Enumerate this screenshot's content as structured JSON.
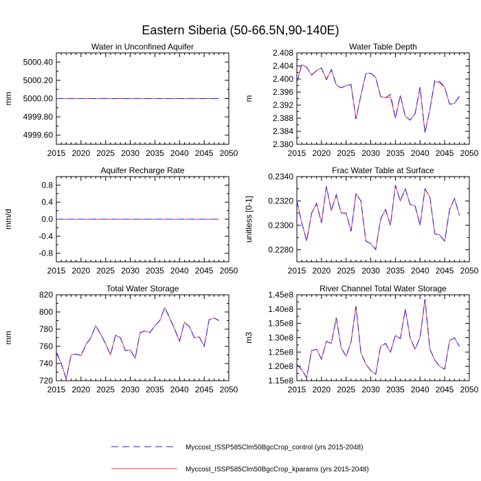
{
  "figure": {
    "title": "Eastern Siberia (50-66.5N,90-140E)"
  },
  "series_styles": [
    {
      "name": "Myccost_ISSP585Clm50BgcCrop_control (yrs 2015-2048)",
      "color": "#1a1aff",
      "dash": "dashed"
    },
    {
      "name": "Myccost_ISSP585Clm50BgcCrop_kparams (yrs 2015-2048)",
      "color": "#ff3333",
      "dash": "solid"
    }
  ],
  "chart_data": [
    {
      "type": "line",
      "title": "Water in Unconfined Aquifer",
      "xlabel": "",
      "ylabel": "mm",
      "xlim": [
        2015,
        2050
      ],
      "ylim": [
        4999.5,
        5000.5
      ],
      "xticks": [
        "2015",
        "2020",
        "2025",
        "2030",
        "2035",
        "2040",
        "2045",
        "2050"
      ],
      "yticks": [
        {
          "v": 5000.4,
          "label": "5000.40"
        },
        {
          "v": 5000.2,
          "label": "5000.20"
        },
        {
          "v": 5000.0,
          "label": "5000.00"
        },
        {
          "v": 4999.8,
          "label": "4999.80"
        },
        {
          "v": 4999.6,
          "label": "4999.60"
        }
      ],
      "x": [
        2015,
        2016,
        2017,
        2018,
        2019,
        2020,
        2021,
        2022,
        2023,
        2024,
        2025,
        2026,
        2027,
        2028,
        2029,
        2030,
        2031,
        2032,
        2033,
        2034,
        2035,
        2036,
        2037,
        2038,
        2039,
        2040,
        2041,
        2042,
        2043,
        2044,
        2045,
        2046,
        2047,
        2048
      ],
      "series": [
        {
          "values": [
            5000,
            5000,
            5000,
            5000,
            5000,
            5000,
            5000,
            5000,
            5000,
            5000,
            5000,
            5000,
            5000,
            5000,
            5000,
            5000,
            5000,
            5000,
            5000,
            5000,
            5000,
            5000,
            5000,
            5000,
            5000,
            5000,
            5000,
            5000,
            5000,
            5000,
            5000,
            5000,
            5000,
            5000
          ]
        },
        {
          "values": [
            5000,
            5000,
            5000,
            5000,
            5000,
            5000,
            5000,
            5000,
            5000,
            5000,
            5000,
            5000,
            5000,
            5000,
            5000,
            5000,
            5000,
            5000,
            5000,
            5000,
            5000,
            5000,
            5000,
            5000,
            5000,
            5000,
            5000,
            5000,
            5000,
            5000,
            5000,
            5000,
            5000,
            5000
          ]
        }
      ]
    },
    {
      "type": "line",
      "title": "Water Table Depth",
      "xlabel": "",
      "ylabel": "m",
      "xlim": [
        2015,
        2050
      ],
      "ylim": [
        2.38,
        2.408
      ],
      "xticks": [
        "2015",
        "2020",
        "2025",
        "2030",
        "2035",
        "2040",
        "2045",
        "2050"
      ],
      "yticks": [
        {
          "v": 2.408,
          "label": "2.408"
        },
        {
          "v": 2.404,
          "label": "2.404"
        },
        {
          "v": 2.4,
          "label": "2.400"
        },
        {
          "v": 2.396,
          "label": "2.396"
        },
        {
          "v": 2.392,
          "label": "2.392"
        },
        {
          "v": 2.388,
          "label": "2.388"
        },
        {
          "v": 2.384,
          "label": "2.384"
        },
        {
          "v": 2.38,
          "label": "2.380"
        }
      ],
      "x": [
        2015,
        2016,
        2017,
        2018,
        2019,
        2020,
        2021,
        2022,
        2023,
        2024,
        2025,
        2026,
        2027,
        2028,
        2029,
        2030,
        2031,
        2032,
        2033,
        2034,
        2035,
        2036,
        2037,
        2038,
        2039,
        2040,
        2041,
        2042,
        2043,
        2044,
        2045,
        2046,
        2047,
        2048
      ],
      "series": [
        {
          "values": [
            2.399,
            2.4044,
            2.4036,
            2.4012,
            2.4026,
            2.4034,
            2.3998,
            2.4029,
            2.3982,
            2.3973,
            2.398,
            2.3983,
            2.3877,
            2.395,
            2.4017,
            2.4018,
            2.4005,
            2.3946,
            2.3943,
            2.3953,
            2.388,
            2.395,
            2.3886,
            2.3874,
            2.3894,
            2.3975,
            2.3835,
            2.3907,
            2.3997,
            2.3992,
            2.3975,
            2.3923,
            2.3925,
            2.3948
          ]
        },
        {
          "values": [
            2.399,
            2.4044,
            2.4036,
            2.4012,
            2.4026,
            2.4034,
            2.3998,
            2.4029,
            2.3982,
            2.3973,
            2.398,
            2.3983,
            2.3877,
            2.395,
            2.4017,
            2.4018,
            2.4005,
            2.3946,
            2.3943,
            2.3945,
            2.388,
            2.395,
            2.3886,
            2.3874,
            2.3894,
            2.3975,
            2.3835,
            2.3907,
            2.3993,
            2.3988,
            2.3975,
            2.3923,
            2.3925,
            2.3948
          ]
        }
      ]
    },
    {
      "type": "line",
      "title": "Aquifer Recharge Rate",
      "xlabel": "",
      "ylabel": "mm/d",
      "xlim": [
        2015,
        2050
      ],
      "ylim": [
        -1.0,
        1.0
      ],
      "xticks": [
        "2015",
        "2020",
        "2025",
        "2030",
        "2035",
        "2040",
        "2045",
        "2050"
      ],
      "yticks": [
        {
          "v": 0.8,
          "label": "0.8"
        },
        {
          "v": 0.4,
          "label": "0.4"
        },
        {
          "v": 0.0,
          "label": "0.0"
        },
        {
          "v": -0.4,
          "label": "-0.4"
        },
        {
          "v": -0.8,
          "label": "-0.8"
        }
      ],
      "x": [
        2015,
        2016,
        2017,
        2018,
        2019,
        2020,
        2021,
        2022,
        2023,
        2024,
        2025,
        2026,
        2027,
        2028,
        2029,
        2030,
        2031,
        2032,
        2033,
        2034,
        2035,
        2036,
        2037,
        2038,
        2039,
        2040,
        2041,
        2042,
        2043,
        2044,
        2045,
        2046,
        2047,
        2048
      ],
      "series": [
        {
          "values": [
            0,
            0,
            0,
            0,
            0,
            0,
            0,
            0,
            0,
            0,
            0,
            0,
            0,
            0,
            0,
            0,
            0,
            0,
            0,
            0,
            0,
            0,
            0,
            0,
            0,
            0,
            0,
            0,
            0,
            0,
            0,
            0,
            0,
            0
          ]
        },
        {
          "values": [
            0,
            0,
            0,
            0,
            0,
            0,
            0,
            0,
            0,
            0,
            0,
            0,
            0,
            0,
            0,
            0,
            0,
            0,
            0,
            0,
            0,
            0,
            0,
            0,
            0,
            0,
            0,
            0,
            0,
            0,
            0,
            0,
            0,
            0
          ]
        }
      ]
    },
    {
      "type": "line",
      "title": "Frac Water Table at Surface",
      "xlabel": "",
      "ylabel": "unitless [0-1]",
      "xlim": [
        2015,
        2050
      ],
      "ylim": [
        0.227,
        0.234
      ],
      "xticks": [
        "2015",
        "2020",
        "2025",
        "2030",
        "2035",
        "2040",
        "2045",
        "2050"
      ],
      "yticks": [
        {
          "v": 0.234,
          "label": "0.2340"
        },
        {
          "v": 0.232,
          "label": "0.2320"
        },
        {
          "v": 0.23,
          "label": "0.2300"
        },
        {
          "v": 0.228,
          "label": "0.2280"
        }
      ],
      "x": [
        2015,
        2016,
        2017,
        2018,
        2019,
        2020,
        2021,
        2022,
        2023,
        2024,
        2025,
        2026,
        2027,
        2028,
        2029,
        2030,
        2031,
        2032,
        2033,
        2034,
        2035,
        2036,
        2037,
        2038,
        2039,
        2040,
        2041,
        2042,
        2043,
        2044,
        2045,
        2046,
        2047,
        2048
      ],
      "series": [
        {
          "values": [
            0.232,
            0.2302,
            0.2287,
            0.231,
            0.2318,
            0.2302,
            0.2332,
            0.2312,
            0.2325,
            0.231,
            0.231,
            0.2295,
            0.2326,
            0.232,
            0.2287,
            0.2285,
            0.228,
            0.2305,
            0.2313,
            0.23,
            0.2333,
            0.232,
            0.233,
            0.2317,
            0.2316,
            0.23,
            0.233,
            0.2323,
            0.2293,
            0.2292,
            0.2287,
            0.2313,
            0.2322,
            0.2308
          ]
        },
        {
          "values": [
            0.232,
            0.2302,
            0.2287,
            0.231,
            0.2318,
            0.2302,
            0.2332,
            0.2312,
            0.2325,
            0.231,
            0.231,
            0.2295,
            0.2326,
            0.232,
            0.2287,
            0.2285,
            0.228,
            0.2305,
            0.2313,
            0.23,
            0.2333,
            0.232,
            0.233,
            0.2317,
            0.2316,
            0.23,
            0.233,
            0.2323,
            0.2293,
            0.2292,
            0.2287,
            0.2313,
            0.2322,
            0.2308
          ]
        }
      ]
    },
    {
      "type": "line",
      "title": "Total Water Storage",
      "xlabel": "",
      "ylabel": "mm",
      "xlim": [
        2015,
        2050
      ],
      "ylim": [
        720,
        820
      ],
      "xticks": [
        "2015",
        "2020",
        "2025",
        "2030",
        "2035",
        "2040",
        "2045",
        "2050"
      ],
      "yticks": [
        {
          "v": 820,
          "label": "820"
        },
        {
          "v": 800,
          "label": "800"
        },
        {
          "v": 780,
          "label": "780"
        },
        {
          "v": 760,
          "label": "760"
        },
        {
          "v": 740,
          "label": "740"
        },
        {
          "v": 720,
          "label": "720"
        }
      ],
      "x": [
        2015,
        2016,
        2017,
        2018,
        2019,
        2020,
        2021,
        2022,
        2023,
        2024,
        2025,
        2026,
        2027,
        2028,
        2029,
        2030,
        2031,
        2032,
        2033,
        2034,
        2035,
        2036,
        2037,
        2038,
        2039,
        2040,
        2041,
        2042,
        2043,
        2044,
        2045,
        2046,
        2047,
        2048
      ],
      "series": [
        {
          "values": [
            753,
            740,
            722,
            750,
            751,
            749,
            762,
            770,
            784,
            774,
            763,
            750,
            773,
            770,
            755,
            756,
            746,
            776,
            778,
            776,
            784,
            790,
            805,
            793,
            780,
            766,
            788,
            783,
            770,
            771,
            760,
            791,
            793,
            790
          ]
        },
        {
          "values": [
            753,
            740,
            722,
            750,
            751,
            749,
            762,
            770,
            784,
            774,
            763,
            750,
            773,
            770,
            755,
            756,
            746,
            776,
            778,
            776,
            784,
            790,
            805,
            793,
            780,
            766,
            788,
            783,
            770,
            771,
            760,
            791,
            793,
            790
          ]
        }
      ]
    },
    {
      "type": "line",
      "title": "River Channel Total Water Storage",
      "xlabel": "",
      "ylabel": "m3",
      "xlim": [
        2015,
        2050
      ],
      "ylim": [
        115000000.0,
        145000000.0
      ],
      "xticks": [
        "2015",
        "2020",
        "2025",
        "2030",
        "2035",
        "2040",
        "2045",
        "2050"
      ],
      "yticks": [
        {
          "v": 145000000.0,
          "label": "1.45e8"
        },
        {
          "v": 140000000.0,
          "label": "1.40e8"
        },
        {
          "v": 135000000.0,
          "label": "1.35e8"
        },
        {
          "v": 130000000.0,
          "label": "1.30e8"
        },
        {
          "v": 125000000.0,
          "label": "1.25e8"
        },
        {
          "v": 120000000.0,
          "label": "1.20e8"
        },
        {
          "v": 115000000.0,
          "label": "1.15e8"
        }
      ],
      "x": [
        2015,
        2016,
        2017,
        2018,
        2019,
        2020,
        2021,
        2022,
        2023,
        2024,
        2025,
        2026,
        2027,
        2028,
        2029,
        2030,
        2031,
        2032,
        2033,
        2034,
        2035,
        2036,
        2037,
        2038,
        2039,
        2040,
        2041,
        2042,
        2043,
        2044,
        2045,
        2046,
        2047,
        2048
      ],
      "series": [
        {
          "values": [
            120700000.0,
            118800000.0,
            116000000.0,
            125500000.0,
            126000000.0,
            122500000.0,
            128700000.0,
            128000000.0,
            137000000.0,
            126500000.0,
            123500000.0,
            128500000.0,
            141000000.0,
            124700000.0,
            120800000.0,
            118500000.0,
            117200000.0,
            127000000.0,
            128000000.0,
            125000000.0,
            130800000.0,
            129700000.0,
            140000000.0,
            130000000.0,
            126000000.0,
            130000000.0,
            143500000.0,
            126000000.0,
            122200000.0,
            120000000.0,
            119000000.0,
            129000000.0,
            130000000.0,
            127000000.0
          ]
        },
        {
          "values": [
            120700000.0,
            118800000.0,
            116000000.0,
            125500000.0,
            126000000.0,
            122500000.0,
            128700000.0,
            128000000.0,
            137000000.0,
            126500000.0,
            123500000.0,
            128500000.0,
            141000000.0,
            124700000.0,
            120800000.0,
            118500000.0,
            117200000.0,
            127000000.0,
            128000000.0,
            125000000.0,
            130800000.0,
            129700000.0,
            140000000.0,
            130000000.0,
            126000000.0,
            130000000.0,
            143500000.0,
            126000000.0,
            122200000.0,
            120000000.0,
            119000000.0,
            129000000.0,
            130000000.0,
            127000000.0
          ]
        }
      ]
    }
  ]
}
